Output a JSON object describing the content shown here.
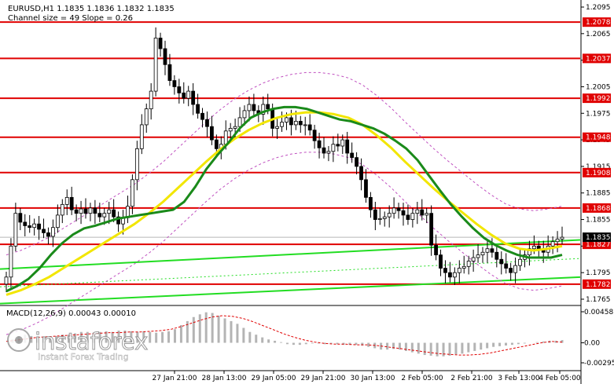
{
  "header": {
    "symbol_line": "EURUSD,H1  1.1835 1.1836 1.1832 1.1835",
    "channel_line": "Channel size = 49 Slope = 0.26"
  },
  "macd": {
    "label": "MACD(12,26,9) 0.00043 0.00010",
    "scale_ticks": [
      "0.00458",
      "0.00",
      "-0.00295"
    ]
  },
  "watermark": {
    "brand": "instaforex",
    "tagline": "Instant Forex Trading"
  },
  "chart_data": {
    "type": "line",
    "symbol": "EURUSD",
    "timeframe": "H1",
    "price_axis_ticks": [
      "1.2095",
      "1.2065",
      "1.2035",
      "1.2005",
      "1.1975",
      "1.1945",
      "1.1915",
      "1.1885",
      "1.1855",
      "1.1825",
      "1.1795",
      "1.1765"
    ],
    "time_axis_ticks": [
      "27 Jan 21:00",
      "28 Jan 13:00",
      "29 Jan 05:00",
      "29 Jan 21:00",
      "30 Jan 13:00",
      "2 Feb 05:00",
      "2 Feb 21:00",
      "3 Feb 13:00",
      "4 Feb 05:00"
    ],
    "current_price": "1.1835",
    "levels": [
      "1.2078",
      "1.2037",
      "1.1992",
      "1.1948",
      "1.1908",
      "1.1868",
      "1.1827",
      "1.1782"
    ],
    "colors": {
      "level_line": "#e00000",
      "level_label_bg": "#e00000",
      "candles": "#000000",
      "ma_fast": "#1a8a1a",
      "ma_slow": "#f2e600",
      "channel": "#22dd22",
      "envelope": "#c050c0",
      "macd_hist": "#b4b4b4",
      "macd_signal": "#e00000"
    },
    "closes": [
      1.179,
      1.1825,
      1.1862,
      1.1852,
      1.1848,
      1.1846,
      1.185,
      1.1844,
      1.184,
      1.1836,
      1.1846,
      1.186,
      1.1872,
      1.188,
      1.1866,
      1.1862,
      1.1867,
      1.1862,
      1.1868,
      1.1862,
      1.1858,
      1.1862,
      1.1866,
      1.1858,
      1.185,
      1.1857,
      1.187,
      1.19,
      1.1935,
      1.1962,
      1.198,
      1.2,
      1.206,
      1.2048,
      1.203,
      1.2012,
      1.2005,
      1.1998,
      1.1992,
      1.2,
      1.1985,
      1.1975,
      1.1968,
      1.196,
      1.1945,
      1.1935,
      1.194,
      1.1955,
      1.1958,
      1.196,
      1.197,
      1.1978,
      1.1985,
      1.1978,
      1.1974,
      1.1985,
      1.198,
      1.1958,
      1.196,
      1.1965,
      1.197,
      1.1962,
      1.1966,
      1.1962,
      1.1962,
      1.1956,
      1.1944,
      1.1936,
      1.193,
      1.1932,
      1.194,
      1.1938,
      1.1945,
      1.193,
      1.1925,
      1.1915,
      1.19,
      1.188,
      1.1866,
      1.1855,
      1.1856,
      1.1858,
      1.1862,
      1.1868,
      1.1865,
      1.186,
      1.1855,
      1.1862,
      1.1866,
      1.186,
      1.1862,
      1.1826,
      1.1815,
      1.18,
      1.1795,
      1.179,
      1.1795,
      1.18,
      1.1802,
      1.1808,
      1.1812,
      1.1815,
      1.1818,
      1.1822,
      1.1818,
      1.181,
      1.1805,
      1.18,
      1.1795,
      1.1803,
      1.181,
      1.1815,
      1.1822,
      1.1825,
      1.1822,
      1.1818,
      1.1825,
      1.183,
      1.1833,
      1.1835
    ],
    "ma_fast": [
      1.1774,
      1.178,
      1.1788,
      1.18,
      1.1815,
      1.1828,
      1.1838,
      1.1845,
      1.1848,
      1.1852,
      1.1856,
      1.1858,
      1.186,
      1.1862,
      1.1864,
      1.1866,
      1.1875,
      1.1892,
      1.1912,
      1.1928,
      1.1942,
      1.1958,
      1.197,
      1.1976,
      1.198,
      1.1982,
      1.1982,
      1.198,
      1.1976,
      1.1972,
      1.1968,
      1.1966,
      1.1962,
      1.1958,
      1.1952,
      1.1944,
      1.1935,
      1.1922,
      1.1905,
      1.1888,
      1.1872,
      1.1858,
      1.1845,
      1.1834,
      1.1826,
      1.182,
      1.1815,
      1.1812,
      1.1812,
      1.1812,
      1.1815
    ],
    "ma_slow": [
      1.177,
      1.1775,
      1.1782,
      1.179,
      1.18,
      1.181,
      1.182,
      1.183,
      1.184,
      1.185,
      1.1862,
      1.1875,
      1.189,
      1.1905,
      1.192,
      1.1934,
      1.1946,
      1.1956,
      1.1964,
      1.197,
      1.1974,
      1.1976,
      1.1976,
      1.1974,
      1.197,
      1.1962,
      1.195,
      1.1936,
      1.192,
      1.1905,
      1.189,
      1.1876,
      1.1863,
      1.185,
      1.1838,
      1.1828,
      1.1822,
      1.182,
      1.1822,
      1.1825
    ],
    "macd_hist": [
      0.0,
      0.0005,
      0.001,
      0.0012,
      0.001,
      0.0008,
      0.0008,
      0.0009,
      0.001,
      0.0012,
      0.0012,
      0.0014,
      0.0016,
      0.0016,
      0.0015,
      0.0016,
      0.0017,
      0.0016,
      0.0018,
      0.0018,
      0.0017,
      0.0016,
      0.0017,
      0.0016,
      0.0015,
      0.0016,
      0.0017,
      0.002,
      0.0026,
      0.0032,
      0.0038,
      0.0042,
      0.0045,
      0.0044,
      0.004,
      0.0036,
      0.0032,
      0.0028,
      0.0022,
      0.0016,
      0.0012,
      0.0008,
      0.0005,
      0.0003,
      0.0001,
      -0.0002,
      -0.0003,
      -0.0003,
      -0.0002,
      -0.0001,
      -0.0001,
      -0.0002,
      -0.0001,
      -0.0002,
      -0.0003,
      -0.0003,
      -0.0003,
      -0.0004,
      -0.0006,
      -0.0008,
      -0.001,
      -0.001,
      -0.0009,
      -0.001,
      -0.0012,
      -0.0014,
      -0.0016,
      -0.0018,
      -0.0019,
      -0.002,
      -0.002,
      -0.0019,
      -0.0017,
      -0.0016,
      -0.0014,
      -0.0012,
      -0.001,
      -0.0008,
      -0.0006,
      -0.0005,
      -0.0004,
      -0.0003,
      -0.0002,
      -0.0001,
      0.0,
      0.0001,
      0.0002,
      0.0003,
      0.0003,
      0.0004
    ],
    "macd_signal": [
      0.0002,
      0.0004,
      0.0006,
      0.0008,
      0.0009,
      0.001,
      0.0011,
      0.0012,
      0.0013,
      0.0014,
      0.0015,
      0.0015,
      0.0016,
      0.0016,
      0.0017,
      0.0018,
      0.002,
      0.0024,
      0.0029,
      0.0034,
      0.0038,
      0.004,
      0.0039,
      0.0036,
      0.0031,
      0.0025,
      0.0019,
      0.0013,
      0.0008,
      0.0004,
      0.0001,
      -0.0001,
      -0.0002,
      -0.0002,
      -0.0003,
      -0.0003,
      -0.0004,
      -0.0006,
      -0.0008,
      -0.001,
      -0.0012,
      -0.0014,
      -0.0016,
      -0.0017,
      -0.0018,
      -0.0018,
      -0.0017,
      -0.0015,
      -0.0012,
      -0.0009,
      -0.0006,
      -0.0003,
      0.0,
      0.0002,
      0.0001
    ]
  }
}
